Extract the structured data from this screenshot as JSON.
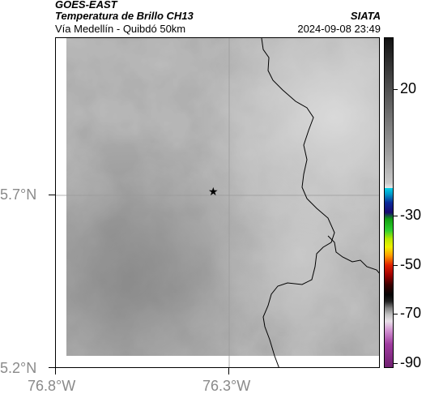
{
  "header": {
    "source": "GOES-EAST",
    "product": "Temperatura de Brillo CH13",
    "region": "Vía Medellín - Quibdó 50km",
    "organization": "SIATA",
    "timestamp": "2024-09-08 23:49"
  },
  "map": {
    "lat_labels": [
      "5.7°N",
      "5.2°N"
    ],
    "lon_labels": [
      "76.8°W",
      "76.3°W"
    ],
    "marker_icon": "star-icon",
    "colors": {
      "cloud_base": "#8e8e8e",
      "grid_line": "#9a9a9a",
      "border_line": "#000000"
    }
  },
  "colorbar": {
    "ticks": [
      "20",
      "-30",
      "-50",
      "-70",
      "-90"
    ],
    "colors": {
      "top": "#1a1a1a",
      "mid_gray": "#9a9a9a",
      "cyan": "#00b7d9",
      "blue": "#0a2a9a",
      "green": "#18c018",
      "yellow": "#f0f000",
      "red": "#e02000",
      "dark_red": "#5a0000",
      "black": "#050505",
      "magenta": "#a03ca0"
    }
  }
}
